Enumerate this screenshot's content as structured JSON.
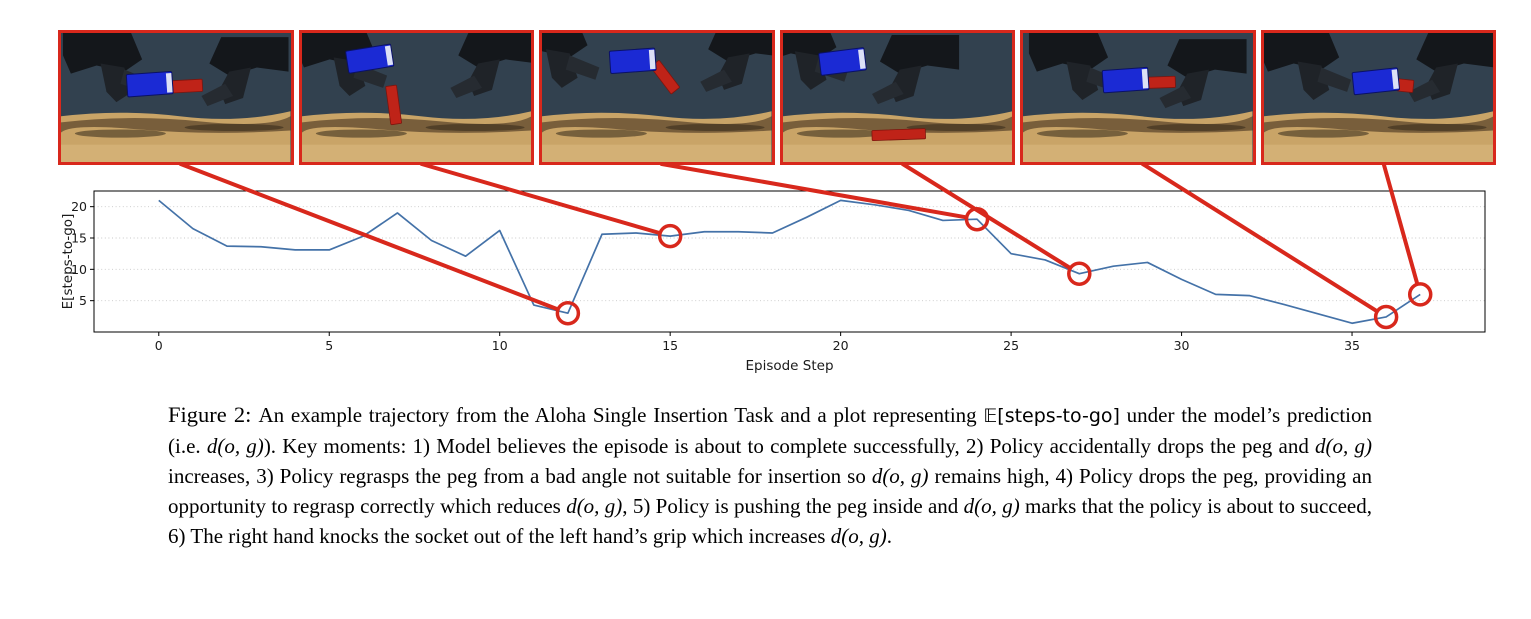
{
  "chart_data": {
    "type": "line",
    "title": "",
    "xlabel": "Episode Step",
    "ylabel": "E[steps-to-go]",
    "x": [
      0,
      1,
      2,
      3,
      4,
      5,
      6,
      7,
      8,
      9,
      10,
      11,
      12,
      13,
      14,
      15,
      16,
      17,
      18,
      19,
      20,
      21,
      22,
      23,
      24,
      25,
      26,
      27,
      28,
      29,
      30,
      31,
      32,
      33,
      34,
      35,
      36,
      37
    ],
    "values": [
      21,
      16.5,
      13.7,
      13.6,
      13.1,
      13.1,
      15.3,
      19,
      14.6,
      12.1,
      16.2,
      4.3,
      3,
      15.6,
      15.8,
      15.3,
      16,
      16,
      15.8,
      18.3,
      21,
      20.3,
      19.4,
      17.8,
      18,
      12.5,
      11.5,
      9.3,
      10.5,
      11.1,
      8.4,
      6,
      5.8,
      4.4,
      2.9,
      1.4,
      2.4,
      6
    ],
    "xticks": [
      0,
      5,
      10,
      15,
      20,
      25,
      30,
      35
    ],
    "yticks": [
      5,
      10,
      15,
      20
    ],
    "xlim": [
      -1.9,
      38.9
    ],
    "ylim": [
      0,
      22.5
    ],
    "grid": "horizontal-dotted",
    "legend": "none",
    "line_color": "#4472a8",
    "annotation_color": "#d8281c",
    "key_moments": [
      {
        "moment": 1,
        "step": 12,
        "value": 3
      },
      {
        "moment": 2,
        "step": 15,
        "value": 15.3
      },
      {
        "moment": 3,
        "step": 24,
        "value": 18
      },
      {
        "moment": 4,
        "step": 27,
        "value": 9.3
      },
      {
        "moment": 5,
        "step": 36,
        "value": 2.4
      },
      {
        "moment": 6,
        "step": 37,
        "value": 6
      }
    ]
  },
  "caption": {
    "segments": [
      {
        "text": "Figure 2: "
      },
      {
        "text": "An example trajectory from the Aloha Single Insertion Task and a plot representing "
      },
      {
        "text": "𝔼[steps-to-go]"
      },
      {
        "text": " under the model’s prediction (i.e. "
      },
      {
        "text": "d(o, g)"
      },
      {
        "text": "). Key moments: 1) Model believes the episode is about to complete successfully, 2) Policy accidentally drops the peg and "
      },
      {
        "text": "d(o, g)"
      },
      {
        "text": " increases, 3) Policy regrasps the peg from a bad angle not suitable for insertion so "
      },
      {
        "text": "d(o, g)"
      },
      {
        "text": " remains high, 4) Policy drops the peg, providing an opportunity to regrasp correctly which reduces "
      },
      {
        "text": "d(o, g)"
      },
      {
        "text": ", 5) Policy is pushing the peg inside and "
      },
      {
        "text": "d(o, g)"
      },
      {
        "text": " marks that the policy is about to succeed, 6) The right hand knocks the socket out of the left hand’s grip which increases "
      },
      {
        "text": "d(o, g)"
      },
      {
        "text": "."
      }
    ]
  }
}
